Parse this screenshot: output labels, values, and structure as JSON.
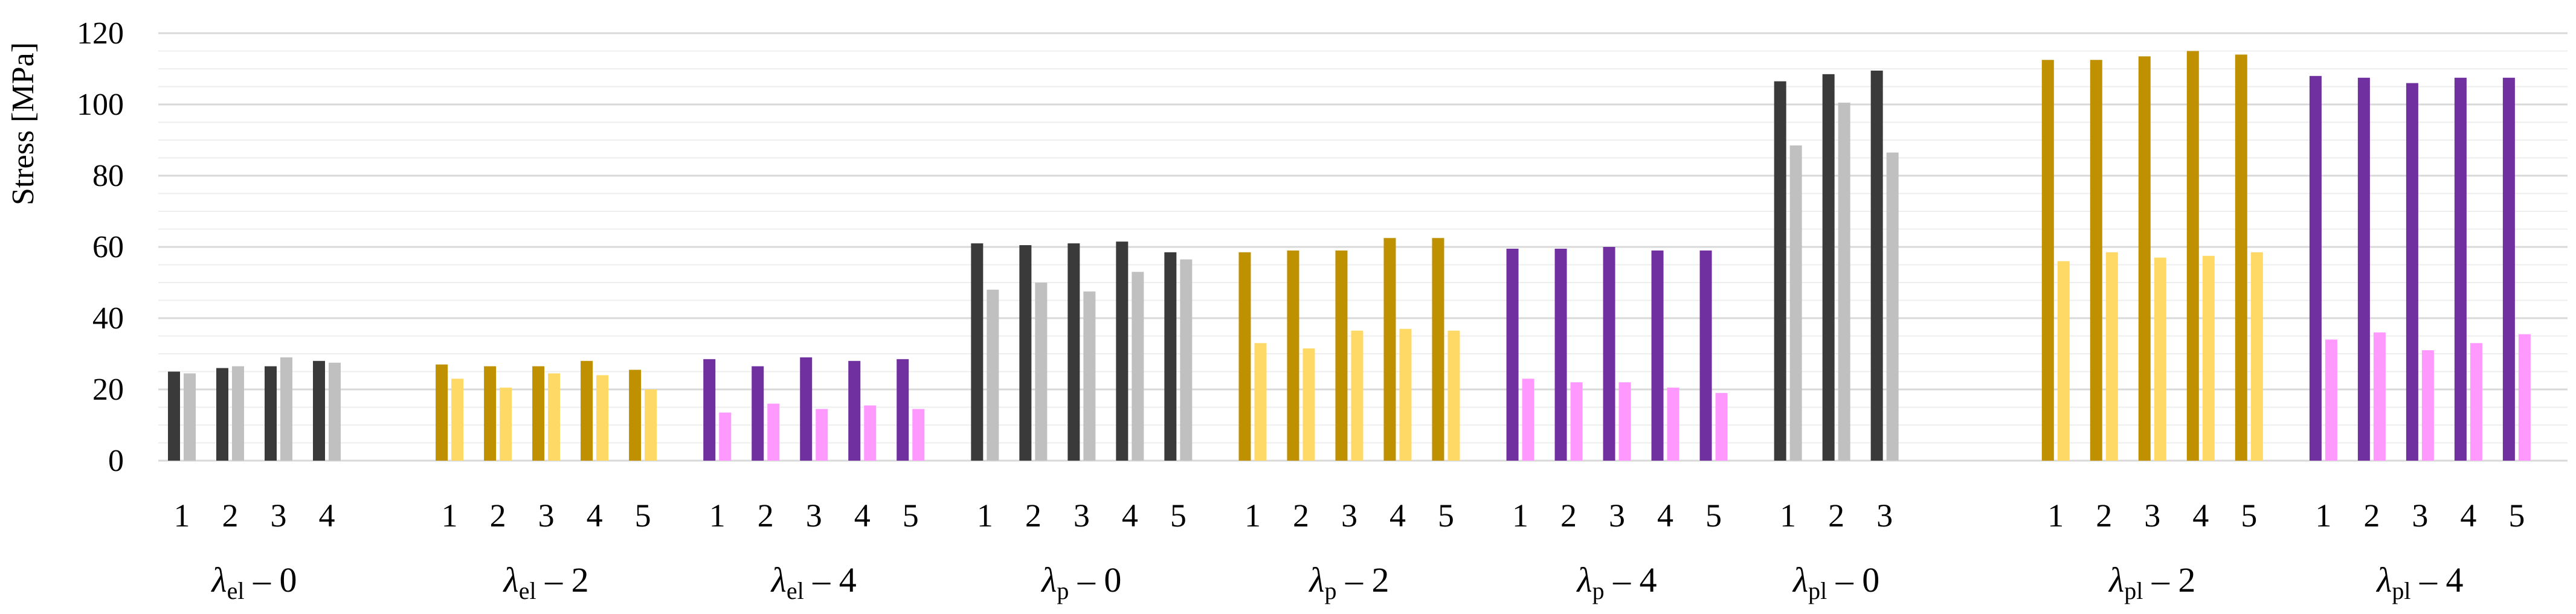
{
  "chart_data": {
    "type": "bar",
    "title": "",
    "xlabel": "",
    "ylabel": "Stress [MPa]",
    "ylim": [
      0,
      120
    ],
    "yticks": [
      0,
      20,
      40,
      60,
      80,
      100,
      120
    ],
    "grid": {
      "major_step": 20,
      "minor_step": 5
    },
    "legend": "none",
    "groups": [
      {
        "id": "el-0",
        "lambda": "λ",
        "sub": "el",
        "suffix": " – 0",
        "dark_color": "#3a3a3a",
        "light_color": "#c0c0c0",
        "categories": [
          "1",
          "2",
          "3",
          "4"
        ],
        "series": [
          {
            "name": "dark",
            "values": [
              25,
              26,
              26.5,
              28
            ]
          },
          {
            "name": "light",
            "values": [
              24.5,
              26.5,
              29,
              27.5
            ]
          }
        ]
      },
      {
        "id": "el-2",
        "lambda": "λ",
        "sub": "el",
        "suffix": " – 2",
        "dark_color": "#bf9000",
        "light_color": "#ffd966",
        "categories": [
          "1",
          "2",
          "3",
          "4",
          "5"
        ],
        "series": [
          {
            "name": "dark",
            "values": [
              27,
              26.5,
              26.5,
              28,
              25.5
            ]
          },
          {
            "name": "light",
            "values": [
              23,
              20.5,
              24.5,
              24,
              20
            ]
          }
        ]
      },
      {
        "id": "el-4",
        "lambda": "λ",
        "sub": "el",
        "suffix": " – 4",
        "dark_color": "#7030a0",
        "light_color": "#ff99ff",
        "categories": [
          "1",
          "2",
          "3",
          "4",
          "5"
        ],
        "series": [
          {
            "name": "dark",
            "values": [
              28.5,
              26.5,
              29,
              28,
              28.5
            ]
          },
          {
            "name": "light",
            "values": [
              13.5,
              16,
              14.5,
              15.5,
              14.5
            ]
          }
        ]
      },
      {
        "id": "p-0",
        "lambda": "λ",
        "sub": "p",
        "suffix": " – 0",
        "dark_color": "#3a3a3a",
        "light_color": "#c0c0c0",
        "categories": [
          "1",
          "2",
          "3",
          "4",
          "5"
        ],
        "series": [
          {
            "name": "dark",
            "values": [
              61,
              60.5,
              61,
              61.5,
              58.5
            ]
          },
          {
            "name": "light",
            "values": [
              48,
              50,
              47.5,
              53,
              56.5
            ]
          }
        ]
      },
      {
        "id": "p-2",
        "lambda": "λ",
        "sub": "p",
        "suffix": " – 2",
        "dark_color": "#bf9000",
        "light_color": "#ffd966",
        "categories": [
          "1",
          "2",
          "3",
          "4",
          "5"
        ],
        "series": [
          {
            "name": "dark",
            "values": [
              58.5,
              59,
              59,
              62.5,
              62.5
            ]
          },
          {
            "name": "light",
            "values": [
              33,
              31.5,
              36.5,
              37,
              36.5
            ]
          }
        ]
      },
      {
        "id": "p-4",
        "lambda": "λ",
        "sub": "p",
        "suffix": " – 4",
        "dark_color": "#7030a0",
        "light_color": "#ff99ff",
        "categories": [
          "1",
          "2",
          "3",
          "4",
          "5"
        ],
        "series": [
          {
            "name": "dark",
            "values": [
              59.5,
              59.5,
              60,
              59,
              59
            ]
          },
          {
            "name": "light",
            "values": [
              23,
              22,
              22,
              20.5,
              19
            ]
          }
        ]
      },
      {
        "id": "pl-0",
        "lambda": "λ",
        "sub": "pl",
        "suffix": " – 0",
        "dark_color": "#3a3a3a",
        "light_color": "#c0c0c0",
        "categories": [
          "1",
          "2",
          "3"
        ],
        "series": [
          {
            "name": "dark",
            "values": [
              106.5,
              108.5,
              109.5
            ]
          },
          {
            "name": "light",
            "values": [
              88.5,
              100.5,
              86.5
            ]
          }
        ]
      },
      {
        "id": "pl-2",
        "lambda": "λ",
        "sub": "pl",
        "suffix": " – 2",
        "dark_color": "#bf9000",
        "light_color": "#ffd966",
        "categories": [
          "1",
          "2",
          "3",
          "4",
          "5"
        ],
        "series": [
          {
            "name": "dark",
            "values": [
              112.5,
              112.5,
              113.5,
              115,
              114
            ]
          },
          {
            "name": "light",
            "values": [
              56,
              58.5,
              57,
              57.5,
              58.5
            ]
          }
        ]
      },
      {
        "id": "pl-4",
        "lambda": "λ",
        "sub": "pl",
        "suffix": " – 4",
        "dark_color": "#7030a0",
        "light_color": "#ff99ff",
        "categories": [
          "1",
          "2",
          "3",
          "4",
          "5"
        ],
        "series": [
          {
            "name": "dark",
            "values": [
              108,
              107.5,
              106,
              107.5,
              107.5
            ]
          },
          {
            "name": "light",
            "values": [
              34,
              36,
              31,
              33,
              35.5
            ]
          }
        ]
      }
    ]
  },
  "colors": {
    "grid_major": "#d9d9d9",
    "grid_minor": "#eeeeee",
    "axis": "#d9d9d9",
    "text": "#000000"
  }
}
